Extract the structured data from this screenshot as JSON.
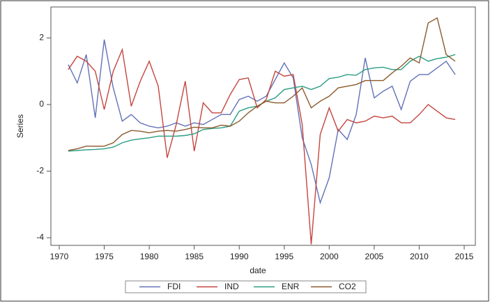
{
  "chart_data": {
    "type": "line",
    "x_label": "date",
    "y_label": "Series",
    "x": [
      1971,
      1972,
      1973,
      1974,
      1975,
      1976,
      1977,
      1978,
      1979,
      1980,
      1981,
      1982,
      1983,
      1984,
      1985,
      1986,
      1987,
      1988,
      1989,
      1990,
      1991,
      1992,
      1993,
      1994,
      1995,
      1996,
      1997,
      1998,
      1999,
      2000,
      2001,
      2002,
      2003,
      2004,
      2005,
      2006,
      2007,
      2008,
      2009,
      2010,
      2011,
      2012,
      2013,
      2014
    ],
    "series": [
      {
        "name": "FDI",
        "color": "#6272b8",
        "values": [
          1.2,
          0.65,
          1.5,
          -0.4,
          1.95,
          0.5,
          -0.5,
          -0.3,
          -0.55,
          -0.65,
          -0.7,
          -0.65,
          -0.55,
          -0.65,
          -0.55,
          -0.6,
          -0.45,
          -0.3,
          -0.3,
          0.15,
          0.25,
          0.1,
          0.25,
          0.75,
          1.25,
          0.8,
          -1.0,
          -1.8,
          -2.95,
          -2.2,
          -0.75,
          -1.05,
          -0.3,
          1.4,
          0.2,
          0.4,
          0.55,
          -0.15,
          0.7,
          0.9,
          0.9,
          1.1,
          1.3,
          0.9
        ]
      },
      {
        "name": "IND",
        "color": "#c4453f",
        "values": [
          1.05,
          1.45,
          1.3,
          1.0,
          -0.15,
          1.0,
          1.65,
          -0.05,
          0.7,
          1.3,
          0.55,
          -1.6,
          -0.6,
          0.7,
          -1.4,
          0.05,
          -0.25,
          -0.25,
          0.3,
          0.75,
          0.8,
          -0.1,
          0.15,
          1.0,
          0.85,
          0.9,
          -0.6,
          -4.2,
          -0.9,
          -0.1,
          -0.8,
          -0.45,
          -0.55,
          -0.5,
          -0.35,
          -0.4,
          -0.35,
          -0.55,
          -0.55,
          -0.3,
          0.0,
          -0.2,
          -0.4,
          -0.45
        ]
      },
      {
        "name": "ENR",
        "color": "#2a9d82",
        "values": [
          -1.4,
          -1.38,
          -1.36,
          -1.35,
          -1.33,
          -1.28,
          -1.15,
          -1.07,
          -1.03,
          -1.0,
          -0.95,
          -0.95,
          -0.95,
          -0.93,
          -0.88,
          -0.75,
          -0.72,
          -0.7,
          -0.65,
          -0.2,
          -0.1,
          -0.05,
          0.1,
          0.2,
          0.45,
          0.5,
          0.55,
          0.45,
          0.55,
          0.78,
          0.82,
          0.9,
          0.88,
          1.05,
          1.1,
          1.12,
          1.05,
          1.05,
          1.3,
          1.45,
          1.3,
          1.38,
          1.42,
          1.5
        ]
      },
      {
        "name": "CO2",
        "color": "#8b5a2b",
        "values": [
          -1.38,
          -1.33,
          -1.25,
          -1.25,
          -1.25,
          -1.15,
          -0.9,
          -0.78,
          -0.8,
          -0.85,
          -0.8,
          -0.78,
          -0.8,
          -0.75,
          -0.68,
          -0.7,
          -0.7,
          -0.62,
          -0.65,
          -0.5,
          -0.25,
          -0.05,
          0.1,
          0.05,
          0.05,
          0.25,
          0.5,
          -0.1,
          0.1,
          0.25,
          0.5,
          0.55,
          0.6,
          0.72,
          0.72,
          0.72,
          0.95,
          1.15,
          1.4,
          1.25,
          2.45,
          2.6,
          1.5,
          1.3
        ]
      }
    ],
    "xlim": [
      1969.07,
      2016.24
    ],
    "xticks": [
      1970,
      1975,
      1980,
      1985,
      1990,
      1995,
      2000,
      2005,
      2010,
      2015
    ],
    "ylim": [
      -4.23,
      2.93
    ],
    "yticks": [
      -4,
      -2,
      0,
      2
    ],
    "legend": "bottom"
  }
}
